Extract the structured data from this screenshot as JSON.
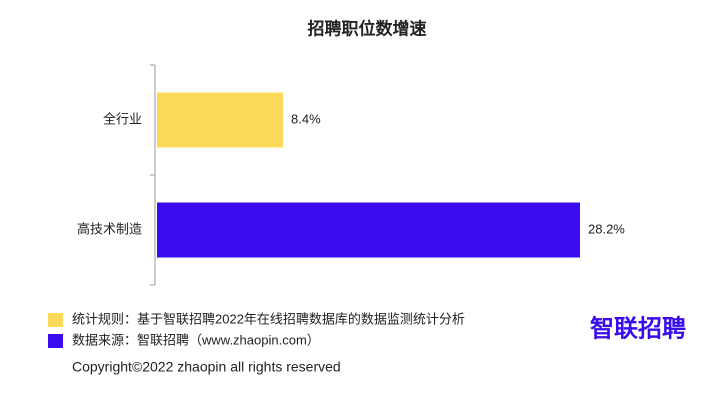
{
  "chart_data": {
    "type": "bar",
    "orientation": "horizontal",
    "title": "招聘职位数增速",
    "categories": [
      "全行业",
      "高技术制造"
    ],
    "values": [
      8.4,
      28.2
    ],
    "value_labels": [
      "8.4%",
      "28.2%"
    ],
    "colors": [
      "#fcd95b",
      "#3a0bef"
    ],
    "xlim": [
      0,
      30
    ]
  },
  "notes": [
    {
      "text": "统计规则：基于智联招聘2022年在线招聘数据库的数据监测统计分析",
      "color": "#fcd95b"
    },
    {
      "text": "数据来源：智联招聘（www.zhaopin.com）",
      "color": "#3a0bef"
    }
  ],
  "logo": "智联招聘",
  "copyright": "Copyright©2022 zhaopin all rights reserved"
}
